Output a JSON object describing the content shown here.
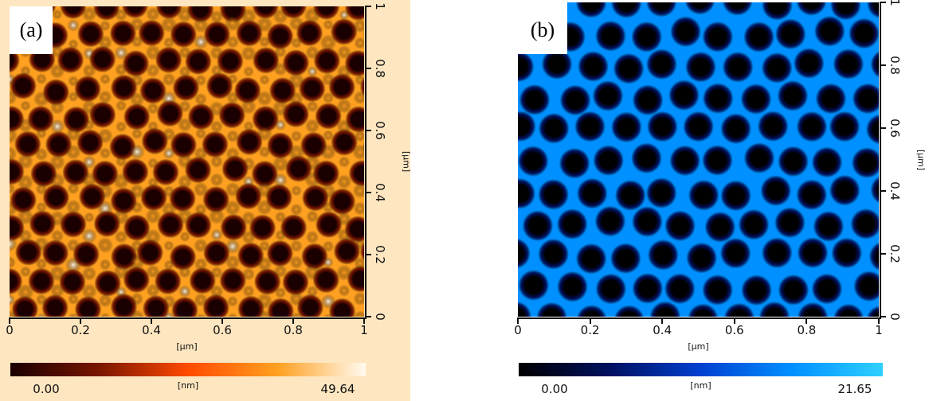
{
  "panels": [
    {
      "label": "(a)",
      "x_ticks": [
        "0",
        "0.2",
        "0.4",
        "0.6",
        "0.8",
        "1"
      ],
      "y_ticks": [
        "0",
        "0.2",
        "0.4",
        "0.6",
        "0.8",
        "1"
      ],
      "x_unit": "[µm]",
      "y_unit": "[µm]",
      "colorbar": {
        "min": "0.00",
        "max": "49.64",
        "unit": "[nm]",
        "colors": [
          "#1a0000",
          "#7a1600",
          "#ff4a00",
          "#ffa020",
          "#fffaf0"
        ]
      },
      "background": "#fde6c0"
    },
    {
      "label": "(b)",
      "x_ticks": [
        "0",
        "0.2",
        "0.4",
        "0.6",
        "0.8",
        "1"
      ],
      "y_ticks": [
        "0",
        "0.2",
        "0.4",
        "0.6",
        "0.8",
        "1"
      ],
      "x_unit": "[µm]",
      "y_unit": "[µm]",
      "colorbar": {
        "min": "0.00",
        "max": "21.65",
        "unit": "[nm]",
        "colors": [
          "#000000",
          "#001060",
          "#0040d0",
          "#0090ff",
          "#30d0ff"
        ]
      },
      "background": "#ffffff"
    }
  ]
}
